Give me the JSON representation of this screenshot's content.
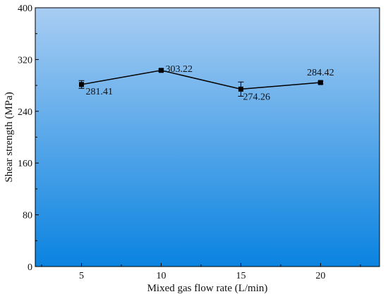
{
  "chart_data": {
    "type": "line",
    "title": "",
    "xlabel": "Mixed gas flow rate  (L/min)",
    "ylabel": "Shear strength (MPa)",
    "x": [
      5,
      10,
      15,
      20
    ],
    "x_ticks": [
      5,
      10,
      15,
      20
    ],
    "xlim": [
      2.1,
      23.7
    ],
    "y_ticks": [
      0,
      80,
      160,
      240,
      320,
      400
    ],
    "ylim": [
      0,
      400
    ],
    "series": [
      {
        "values": [
          281.41,
          303.22,
          274.26,
          284.42
        ],
        "error": [
          6,
          2,
          11,
          2
        ],
        "labels": [
          "281.41",
          "303.22",
          "274.26",
          "284.42"
        ],
        "color": "#000000",
        "marker": "square"
      }
    ],
    "background_gradient": [
      "#a8cdf3",
      "#0a83e0"
    ],
    "grid": false,
    "legend": "none"
  }
}
